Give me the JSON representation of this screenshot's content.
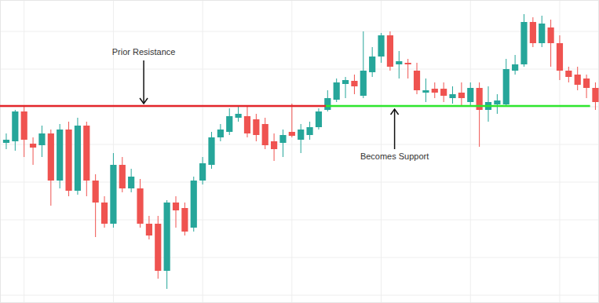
{
  "chart_data": {
    "type": "candlestick",
    "x": [
      1,
      2,
      3,
      4,
      5,
      6,
      7,
      8,
      9,
      10,
      11,
      12,
      13,
      14,
      15,
      16,
      17,
      18,
      19,
      20,
      21,
      22,
      23,
      24,
      25,
      26,
      27,
      28,
      29,
      30,
      31,
      32,
      33,
      34,
      35,
      36,
      37,
      38,
      39,
      40,
      41,
      42,
      43,
      44,
      45,
      46,
      47,
      48,
      49,
      50,
      51,
      52,
      53,
      54,
      55,
      56,
      57,
      58,
      59,
      60,
      61,
      62,
      63,
      64,
      65,
      66,
      67
    ],
    "open": [
      204,
      206,
      244,
      203,
      201,
      216,
      156,
      221,
      143,
      226,
      156,
      128,
      101,
      176,
      146,
      146,
      101,
      101,
      41,
      128,
      121,
      96,
      156,
      176,
      211,
      218,
      236,
      238,
      234,
      228,
      206,
      204,
      218,
      208,
      214,
      224,
      246,
      259,
      279,
      283,
      264,
      294,
      314,
      341,
      304,
      306,
      296,
      268,
      273,
      273,
      261,
      268,
      256,
      274,
      246,
      253,
      253,
      296,
      304,
      358,
      331,
      351,
      331,
      296,
      291,
      286,
      274
    ],
    "high": [
      216,
      246,
      251,
      211,
      226,
      221,
      228,
      231,
      236,
      231,
      164,
      136,
      191,
      186,
      171,
      158,
      111,
      111,
      131,
      136,
      128,
      161,
      186,
      218,
      228,
      248,
      251,
      251,
      241,
      236,
      216,
      221,
      254,
      228,
      231,
      248,
      271,
      286,
      288,
      291,
      346,
      326,
      344,
      346,
      321,
      311,
      306,
      286,
      281,
      281,
      276,
      281,
      281,
      281,
      276,
      266,
      311,
      316,
      368,
      364,
      366,
      361,
      341,
      301,
      301,
      291,
      281
    ],
    "low": [
      196,
      194,
      186,
      176,
      186,
      124,
      146,
      136,
      138,
      136,
      84,
      96,
      96,
      141,
      141,
      96,
      81,
      31,
      18,
      96,
      86,
      91,
      151,
      171,
      206,
      214,
      231,
      211,
      206,
      196,
      181,
      186,
      211,
      191,
      208,
      221,
      244,
      256,
      261,
      266,
      261,
      288,
      306,
      296,
      286,
      286,
      266,
      256,
      261,
      256,
      254,
      251,
      251,
      199,
      231,
      241,
      251,
      291,
      301,
      326,
      326,
      301,
      284,
      281,
      271,
      261,
      246
    ],
    "close": [
      208,
      244,
      208,
      198,
      216,
      156,
      221,
      143,
      226,
      156,
      128,
      101,
      176,
      146,
      161,
      101,
      86,
      41,
      128,
      118,
      91,
      156,
      178,
      211,
      221,
      238,
      241,
      216,
      214,
      201,
      196,
      214,
      213,
      221,
      224,
      244,
      261,
      281,
      284,
      276,
      296,
      314,
      341,
      301,
      308,
      304,
      271,
      271,
      268,
      264,
      266,
      261,
      274,
      246,
      256,
      258,
      298,
      304,
      358,
      331,
      356,
      331,
      296,
      288,
      278,
      274,
      256
    ],
    "xlim": [
      0.3,
      67.4
    ],
    "ylim": [
      0,
      386
    ],
    "xticks": [
      3,
      13,
      23,
      33,
      43,
      53,
      63
    ],
    "yticks": [
      10,
      58,
      106,
      154,
      202,
      250,
      298,
      346
    ],
    "grid": true,
    "tick_labels": false,
    "levels": [
      {
        "value": 251,
        "x_start": 0.3,
        "x_end": 36.8,
        "color": "#e3262b"
      },
      {
        "value": 251,
        "x_start": 36.8,
        "x_end": 66.4,
        "color": "#2ee62e"
      }
    ],
    "annotations": [
      {
        "text": "Prior Resistance",
        "x": 16.4,
        "y": 254,
        "text_y": 319
      },
      {
        "text": "Becomes Support",
        "x": 44.5,
        "y": 247,
        "text_y": 186
      }
    ]
  }
}
